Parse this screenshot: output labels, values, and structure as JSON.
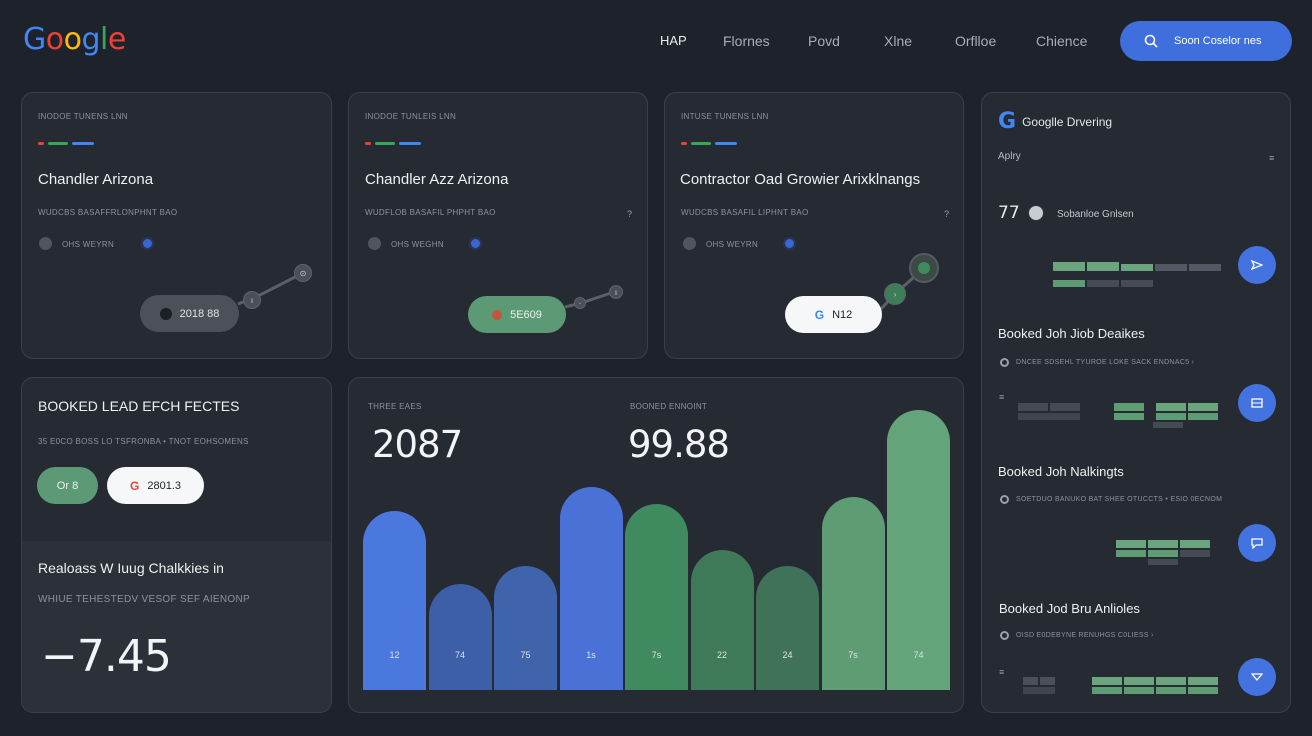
{
  "header": {
    "logo_letters": [
      "G",
      "o",
      "o",
      "g",
      "l",
      "e"
    ],
    "logo_colors": [
      "#4285f4",
      "#ea4335",
      "#fbbc05",
      "#4285f4",
      "#34a853",
      "#ea4335"
    ],
    "nav": [
      "HAP",
      "Flornes",
      "Povd",
      "Xlne",
      "Orflloe",
      "Chience"
    ],
    "search_label": "Soon Coselor nes"
  },
  "cards": [
    {
      "small_top": "INODOE TUNENS LNN",
      "title": "Chandler Arizona",
      "sub": "WUDCBS BASAFFRLONPHNT BAO",
      "meta": "OHS WEYRN",
      "pill": "2018 88",
      "question": ""
    },
    {
      "small_top": "INODOE TUNLEIS LNN",
      "title": "Chandler Azz Arizona",
      "sub": "WUDFLOB BASAFIL PHPHT BAO",
      "meta": "OHS WEGHN",
      "pill": "5E609",
      "question": "?"
    },
    {
      "small_top": "INTUSE TUNENS LNN",
      "title": "Contractor Oad Growier Arixklnangs",
      "sub": "WUDCBS BASAFIL LIPHNT BAO",
      "meta": "OHS WEYRN",
      "pill": "N12",
      "question": "?"
    }
  ],
  "lead_card": {
    "title": "BOOKED LEAD EFCH FECTES",
    "sub": "35 E0CO BOSS LO TSFRONBA • TNOT EOHSOMENS",
    "pill_left": "Or 8",
    "pill_right": "2801.3",
    "section_title": "Realoass W Iuug Chalkkies in",
    "section_sub": "WHIUE TEHESTEDV VESOF SEF AIENONP",
    "big_value": "−7.45"
  },
  "chart_panel": {
    "stat1_label": "THREE EAES",
    "stat1_value": "2087",
    "stat2_label": "BOONED ENNOINT",
    "stat2_value": "99.88"
  },
  "chart_data": {
    "type": "bar",
    "categories": [
      "12",
      "74",
      "75",
      "1s",
      "7s",
      "22",
      "24",
      "7s",
      "74"
    ],
    "values": [
      185,
      110,
      128,
      210,
      192,
      145,
      128,
      200,
      290
    ],
    "colors": [
      "#4a78dc",
      "#3c5fa8",
      "#4064ac",
      "#4a72d6",
      "#3f8a5e",
      "#3f7a58",
      "#3f7258",
      "#5e9c74",
      "#64a47a"
    ],
    "ylim": [
      0,
      300
    ]
  },
  "side_panel": {
    "title": "Googlle Drvering",
    "subtitle": "Aplry",
    "subtitle_mark": "≡",
    "stat_value": "77",
    "stat_label": "Sobanloe Gnlsen",
    "items": [
      {
        "title": "Booked Joh Jiob Deaikes",
        "sub": "DNCEE SDSEHL TYUROE LOKE SACK ENDNAC5 ›",
        "mark": "≡"
      },
      {
        "title": "Booked Joh Nalkingts",
        "sub": "SOETDUO BANUKO BAT SHEE OTUCCTS • ESIO 0ECNOM",
        "mark": ""
      },
      {
        "title": "Booked Jod Bru Anlioles",
        "sub": "OISD E0DEBYNE RENUHGS C0LIESS ›",
        "mark": "≡"
      }
    ]
  }
}
